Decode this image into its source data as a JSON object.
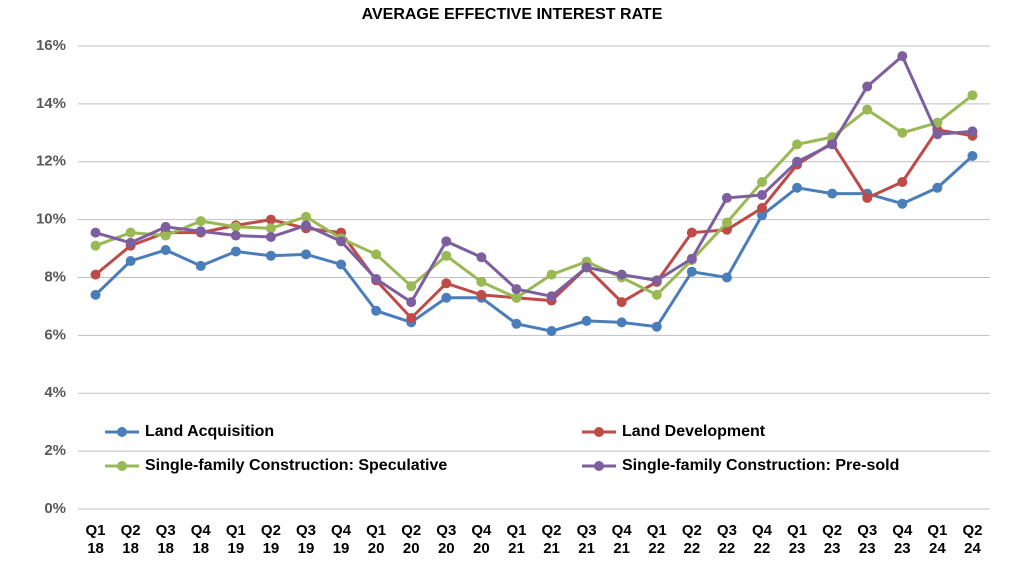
{
  "chart_data": {
    "type": "line",
    "title": "AVERAGE EFFECTIVE INTEREST RATE",
    "categories": [
      "Q1 18",
      "Q2 18",
      "Q3 18",
      "Q4 18",
      "Q1 19",
      "Q2 19",
      "Q3 19",
      "Q4 19",
      "Q1 20",
      "Q2 20",
      "Q3 20",
      "Q4 20",
      "Q1 21",
      "Q2 21",
      "Q3 21",
      "Q4 21",
      "Q1 22",
      "Q2 22",
      "Q3 22",
      "Q4 22",
      "Q1 23",
      "Q2 23",
      "Q3 23",
      "Q4 23",
      "Q1 24",
      "Q2 24"
    ],
    "series": [
      {
        "name": "Land Acquisition",
        "color": "#4a7ebb",
        "values": [
          7.4,
          8.57,
          8.95,
          8.4,
          8.9,
          8.75,
          8.8,
          8.45,
          6.85,
          6.45,
          7.3,
          7.3,
          6.4,
          6.15,
          6.5,
          6.45,
          6.3,
          8.2,
          8.0,
          10.15,
          11.1,
          10.9,
          10.9,
          10.55,
          11.1,
          12.2
        ]
      },
      {
        "name": "Land Development",
        "color": "#be4b48",
        "values": [
          8.1,
          9.1,
          9.55,
          9.55,
          9.8,
          10.0,
          9.7,
          9.55,
          7.9,
          6.6,
          7.8,
          7.4,
          7.3,
          7.2,
          8.35,
          7.15,
          7.85,
          9.55,
          9.65,
          10.4,
          11.9,
          12.65,
          10.75,
          11.3,
          13.1,
          12.9
        ]
      },
      {
        "name": "Single-family Construction: Speculative",
        "color": "#98b954",
        "values": [
          9.1,
          9.55,
          9.45,
          9.95,
          9.75,
          9.7,
          10.1,
          9.35,
          8.8,
          7.7,
          8.75,
          7.85,
          7.3,
          8.1,
          8.55,
          8.0,
          7.4,
          8.6,
          9.9,
          11.3,
          12.6,
          12.85,
          13.8,
          13.0,
          13.35,
          14.3
        ]
      },
      {
        "name": "Single-family Construction: Pre-sold",
        "color": "#7d5fa0",
        "values": [
          9.55,
          9.2,
          9.75,
          9.6,
          9.45,
          9.4,
          9.8,
          9.25,
          7.95,
          7.15,
          9.25,
          8.7,
          7.6,
          7.35,
          8.35,
          8.1,
          7.9,
          8.65,
          10.75,
          10.85,
          12.0,
          12.6,
          14.6,
          15.65,
          12.95,
          13.05
        ]
      }
    ],
    "ylim": [
      0,
      16
    ],
    "yticks": [
      {
        "value": 0,
        "label": "0%"
      },
      {
        "value": 2,
        "label": "2%"
      },
      {
        "value": 4,
        "label": "4%"
      },
      {
        "value": 6,
        "label": "6%"
      },
      {
        "value": 8,
        "label": "8%"
      },
      {
        "value": 10,
        "label": "10%"
      },
      {
        "value": 12,
        "label": "12%"
      },
      {
        "value": 14,
        "label": "14%"
      },
      {
        "value": 16,
        "label": "16%"
      }
    ],
    "grid": true
  }
}
